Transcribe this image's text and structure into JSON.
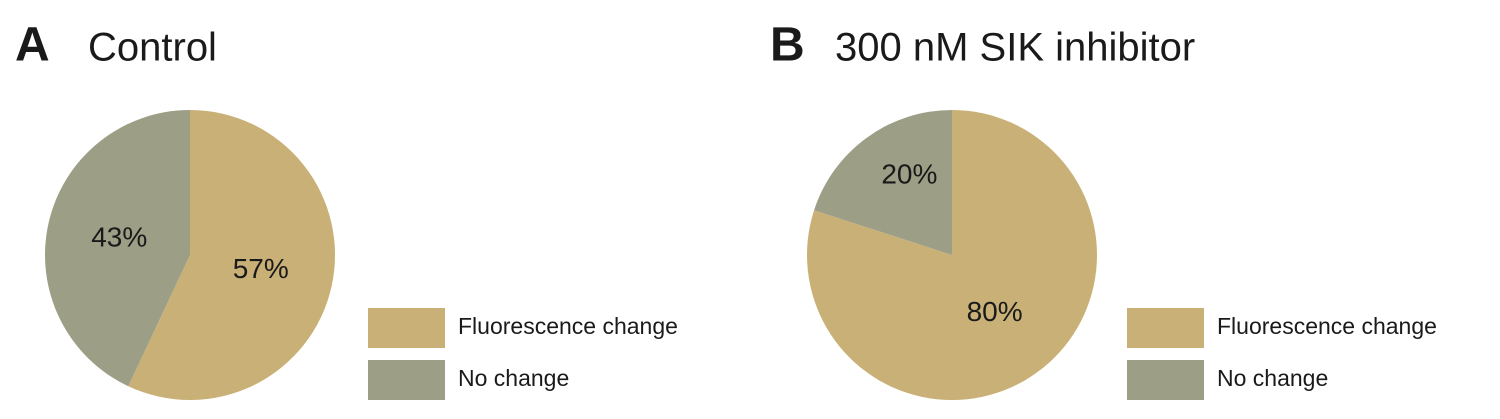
{
  "chart_data": [
    {
      "type": "pie",
      "panel_label": "A",
      "title": "Control",
      "categories": [
        "Fluorescence change",
        "No change"
      ],
      "values": [
        57,
        43
      ],
      "value_labels": [
        "57%",
        "43%"
      ],
      "colors": [
        "#c9b077",
        "#9c9e86"
      ],
      "legend": "right"
    },
    {
      "type": "pie",
      "panel_label": "B",
      "title": "300 nM SIK inhibitor",
      "categories": [
        "Fluorescence change",
        "No change"
      ],
      "values": [
        80,
        20
      ],
      "value_labels": [
        "80%",
        "20%"
      ],
      "colors": [
        "#c9b077",
        "#9c9e86"
      ],
      "legend": "right"
    }
  ]
}
